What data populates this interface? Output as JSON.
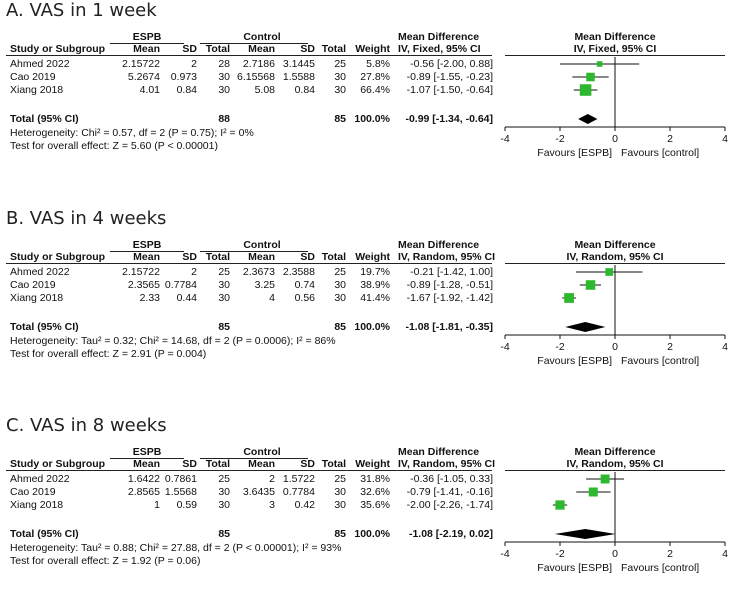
{
  "colors": {
    "marker": "#2db82d",
    "line": "#111111"
  },
  "headers": {
    "group1": "ESPB",
    "group2": "Control",
    "study": "Study or Subgroup",
    "mean": "Mean",
    "sd": "SD",
    "total": "Total",
    "weight": "Weight",
    "md_title": "Mean Difference",
    "favours_left": "Favours [ESPB]",
    "favours_right": "Favours [control]"
  },
  "chart_data": [
    {
      "type": "forest",
      "title": "A. VAS in 1 week",
      "method": "IV, Fixed, 95% CI",
      "xlim": [
        -4,
        4
      ],
      "ticks": [
        "-4",
        "-2",
        "0",
        "2",
        "4"
      ],
      "studies": [
        {
          "name": "Ahmed 2022",
          "m1": "2.15722",
          "sd1": "2",
          "n1": "28",
          "m2": "2.7186",
          "sd2": "3.1445",
          "n2": "25",
          "weight": "5.8%",
          "ci_text": "-0.56 [-2.00, 0.88]",
          "md": -0.56,
          "lo": -2.0,
          "hi": 0.88,
          "w": 5.8
        },
        {
          "name": "Cao 2019",
          "m1": "5.2674",
          "sd1": "0.973",
          "n1": "30",
          "m2": "6.15568",
          "sd2": "1.5588",
          "n2": "30",
          "weight": "27.8%",
          "ci_text": "-0.89 [-1.55, -0.23]",
          "md": -0.89,
          "lo": -1.55,
          "hi": -0.23,
          "w": 27.8
        },
        {
          "name": "Xiang 2018",
          "m1": "4.01",
          "sd1": "0.84",
          "n1": "30",
          "m2": "5.08",
          "sd2": "0.84",
          "n2": "30",
          "weight": "66.4%",
          "ci_text": "-1.07 [-1.50, -0.64]",
          "md": -1.07,
          "lo": -1.5,
          "hi": -0.64,
          "w": 66.4
        }
      ],
      "total": {
        "label": "Total (95% CI)",
        "n1": "88",
        "n2": "85",
        "weight": "100.0%",
        "ci_text": "-0.99 [-1.34, -0.64]",
        "md": -0.99,
        "lo": -1.34,
        "hi": -0.64
      },
      "heterogeneity": "Heterogeneity: Chi² = 0.57, df = 2 (P = 0.75); I² = 0%",
      "overall": "Test for overall effect: Z = 5.60 (P < 0.00001)"
    },
    {
      "type": "forest",
      "title": "B. VAS in 4 weeks",
      "method": "IV, Random, 95% CI",
      "xlim": [
        -4,
        4
      ],
      "ticks": [
        "-4",
        "-2",
        "0",
        "2",
        "4"
      ],
      "studies": [
        {
          "name": "Ahmed 2022",
          "m1": "2.15722",
          "sd1": "2",
          "n1": "25",
          "m2": "2.3673",
          "sd2": "2.3588",
          "n2": "25",
          "weight": "19.7%",
          "ci_text": "-0.21 [-1.42, 1.00]",
          "md": -0.21,
          "lo": -1.42,
          "hi": 1.0,
          "w": 19.7
        },
        {
          "name": "Cao 2019",
          "m1": "2.3565",
          "sd1": "0.7784",
          "n1": "30",
          "m2": "3.25",
          "sd2": "0.74",
          "n2": "30",
          "weight": "38.9%",
          "ci_text": "-0.89 [-1.28, -0.51]",
          "md": -0.89,
          "lo": -1.28,
          "hi": -0.51,
          "w": 38.9
        },
        {
          "name": "Xiang 2018",
          "m1": "2.33",
          "sd1": "0.44",
          "n1": "30",
          "m2": "4",
          "sd2": "0.56",
          "n2": "30",
          "weight": "41.4%",
          "ci_text": "-1.67 [-1.92, -1.42]",
          "md": -1.67,
          "lo": -1.92,
          "hi": -1.42,
          "w": 41.4
        }
      ],
      "total": {
        "label": "Total (95% CI)",
        "n1": "85",
        "n2": "85",
        "weight": "100.0%",
        "ci_text": "-1.08 [-1.81, -0.35]",
        "md": -1.08,
        "lo": -1.81,
        "hi": -0.35
      },
      "heterogeneity": "Heterogeneity: Tau² = 0.32; Chi² = 14.68, df = 2 (P = 0.0006); I² = 86%",
      "overall": "Test for overall effect: Z = 2.91 (P = 0.004)"
    },
    {
      "type": "forest",
      "title": "C. VAS in 8 weeks",
      "method": "IV, Random, 95% CI",
      "xlim": [
        -4,
        4
      ],
      "ticks": [
        "-4",
        "-2",
        "0",
        "2",
        "4"
      ],
      "studies": [
        {
          "name": "Ahmed 2022",
          "m1": "1.6422",
          "sd1": "0.7861",
          "n1": "25",
          "m2": "2",
          "sd2": "1.5722",
          "n2": "25",
          "weight": "31.8%",
          "ci_text": "-0.36 [-1.05, 0.33]",
          "md": -0.36,
          "lo": -1.05,
          "hi": 0.33,
          "w": 31.8
        },
        {
          "name": "Cao 2019",
          "m1": "2.8565",
          "sd1": "1.5568",
          "n1": "30",
          "m2": "3.6435",
          "sd2": "0.7784",
          "n2": "30",
          "weight": "32.6%",
          "ci_text": "-0.79 [-1.41, -0.16]",
          "md": -0.79,
          "lo": -1.41,
          "hi": -0.16,
          "w": 32.6
        },
        {
          "name": "Xiang 2018",
          "m1": "1",
          "sd1": "0.59",
          "n1": "30",
          "m2": "3",
          "sd2": "0.42",
          "n2": "30",
          "weight": "35.6%",
          "ci_text": "-2.00 [-2.26, -1.74]",
          "md": -2.0,
          "lo": -2.26,
          "hi": -1.74,
          "w": 35.6
        }
      ],
      "total": {
        "label": "Total (95% CI)",
        "n1": "85",
        "n2": "85",
        "weight": "100.0%",
        "ci_text": "-1.08 [-2.19, 0.02]",
        "md": -1.08,
        "lo": -2.19,
        "hi": 0.02
      },
      "heterogeneity": "Heterogeneity: Tau² = 0.88; Chi² = 27.88, df = 2 (P < 0.00001); I² = 93%",
      "overall": "Test for overall effect: Z = 1.92 (P = 0.06)"
    }
  ]
}
